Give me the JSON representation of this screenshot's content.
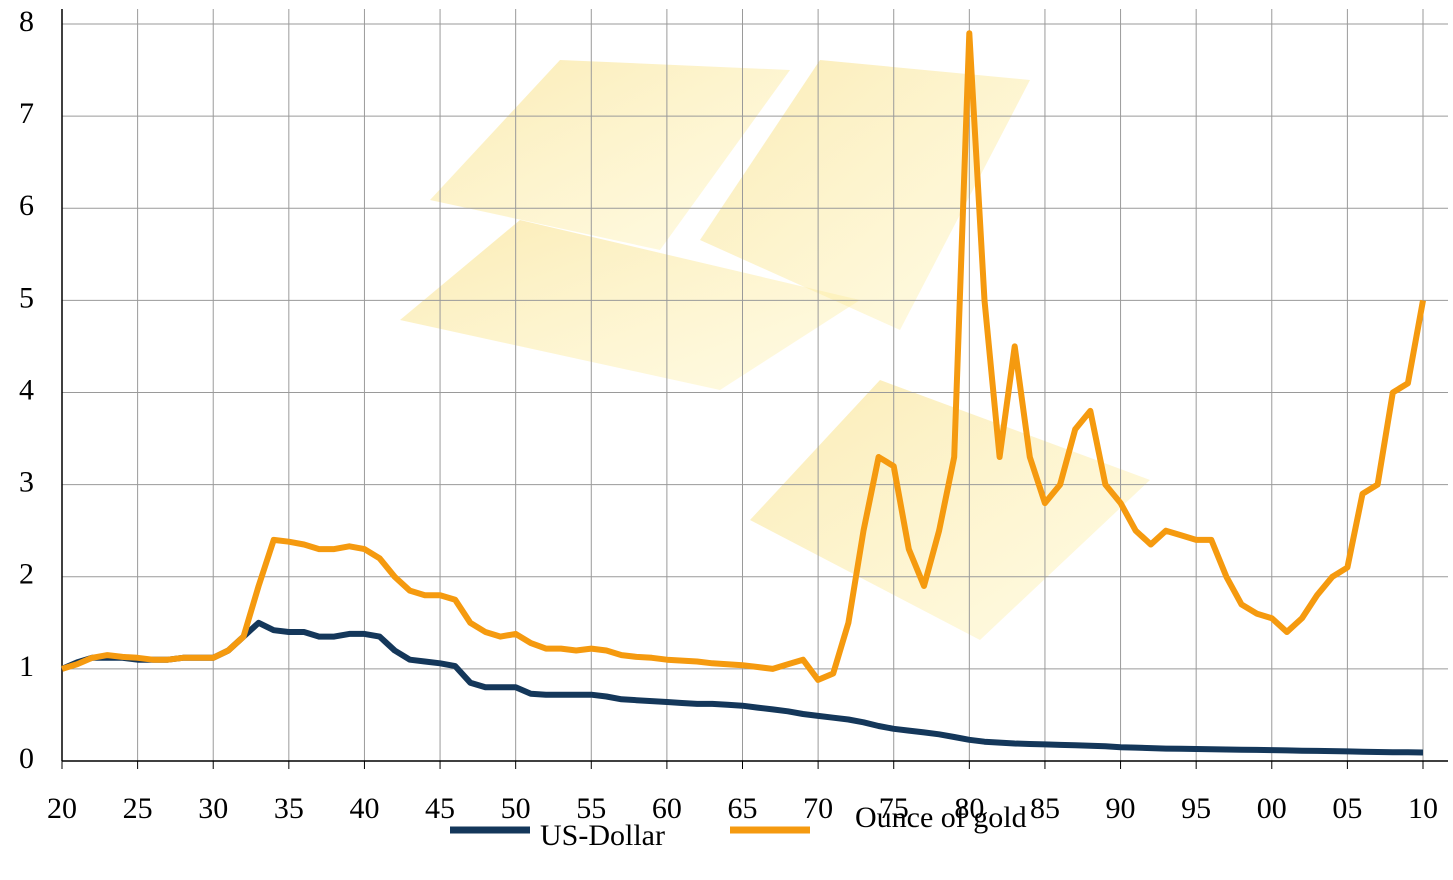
{
  "chart_data": {
    "type": "line",
    "categories": [
      "20",
      null,
      null,
      null,
      null,
      "25",
      null,
      null,
      null,
      null,
      "30",
      null,
      null,
      null,
      null,
      "35",
      null,
      null,
      null,
      null,
      "40",
      null,
      null,
      null,
      null,
      "45",
      null,
      null,
      null,
      null,
      "50",
      null,
      null,
      null,
      null,
      "55",
      null,
      null,
      null,
      null,
      "60",
      null,
      null,
      null,
      null,
      "65",
      null,
      null,
      null,
      null,
      "70",
      null,
      null,
      null,
      null,
      "75",
      null,
      null,
      null,
      null,
      "80",
      null,
      null,
      null,
      null,
      "85",
      null,
      null,
      null,
      null,
      "90",
      null,
      null,
      null,
      null,
      "95",
      null,
      null,
      null,
      null,
      "00",
      null,
      null,
      null,
      null,
      "05",
      null,
      null,
      null,
      null,
      "10"
    ],
    "series": [
      {
        "name": "US-Dollar",
        "color": "#14375a",
        "values": [
          1.0,
          1.07,
          1.12,
          1.12,
          1.12,
          1.1,
          1.1,
          1.1,
          1.12,
          1.12,
          1.12,
          1.2,
          1.35,
          1.5,
          1.42,
          1.4,
          1.4,
          1.35,
          1.35,
          1.38,
          1.38,
          1.35,
          1.2,
          1.1,
          1.08,
          1.06,
          1.03,
          0.85,
          0.8,
          0.8,
          0.8,
          0.73,
          0.72,
          0.72,
          0.72,
          0.72,
          0.7,
          0.67,
          0.66,
          0.65,
          0.64,
          0.63,
          0.62,
          0.62,
          0.61,
          0.6,
          0.58,
          0.56,
          0.54,
          0.51,
          0.49,
          0.47,
          0.45,
          0.42,
          0.38,
          0.35,
          0.33,
          0.31,
          0.29,
          0.26,
          0.23,
          0.21,
          0.2,
          0.19,
          0.185,
          0.18,
          0.175,
          0.17,
          0.165,
          0.16,
          0.15,
          0.145,
          0.14,
          0.135,
          0.132,
          0.13,
          0.127,
          0.125,
          0.122,
          0.12,
          0.118,
          0.115,
          0.112,
          0.11,
          0.107,
          0.104,
          0.1,
          0.098,
          0.095,
          0.094,
          0.092
        ]
      },
      {
        "name": "Ounce of gold",
        "color": "#f59a0f",
        "values": [
          1.0,
          1.05,
          1.12,
          1.15,
          1.13,
          1.12,
          1.1,
          1.1,
          1.12,
          1.12,
          1.12,
          1.2,
          1.35,
          1.9,
          2.4,
          2.38,
          2.35,
          2.3,
          2.3,
          2.33,
          2.3,
          2.2,
          2.0,
          1.85,
          1.8,
          1.8,
          1.75,
          1.5,
          1.4,
          1.35,
          1.38,
          1.28,
          1.22,
          1.22,
          1.2,
          1.22,
          1.2,
          1.15,
          1.13,
          1.12,
          1.1,
          1.09,
          1.08,
          1.06,
          1.05,
          1.04,
          1.02,
          1.0,
          1.05,
          1.1,
          0.88,
          0.95,
          1.5,
          2.5,
          3.3,
          3.2,
          2.3,
          1.9,
          2.5,
          3.3,
          7.9,
          5.0,
          3.3,
          4.5,
          3.3,
          2.8,
          3.0,
          3.6,
          3.8,
          3.0,
          2.8,
          2.5,
          2.35,
          2.5,
          2.45,
          2.4,
          2.4,
          2.0,
          1.7,
          1.6,
          1.55,
          1.4,
          1.55,
          1.8,
          2.0,
          2.1,
          2.9,
          3.0,
          4.0,
          4.1,
          5.0
        ]
      }
    ],
    "ylim": [
      0,
      8
    ],
    "yticks": [
      0,
      1,
      2,
      3,
      4,
      5,
      6,
      7,
      8
    ],
    "grid": true,
    "legend": "bottom"
  }
}
